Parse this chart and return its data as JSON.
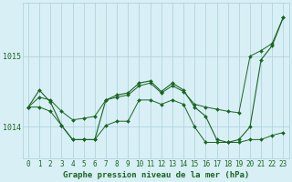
{
  "title": "Graphe pression niveau de la mer (hPa)",
  "x_values": [
    0,
    1,
    2,
    3,
    4,
    5,
    6,
    7,
    8,
    9,
    10,
    11,
    12,
    13,
    14,
    15,
    16,
    17,
    18,
    19,
    20,
    21,
    22,
    23
  ],
  "y_upper": [
    1014.28,
    1014.42,
    1014.38,
    1014.22,
    1014.1,
    1014.12,
    1014.15,
    1014.38,
    1014.42,
    1014.45,
    1014.58,
    1014.62,
    1014.48,
    1014.58,
    1014.5,
    1014.32,
    1014.28,
    1014.25,
    1014.22,
    1014.2,
    1015.0,
    1015.08,
    1015.18,
    1015.55
  ],
  "y_lower": [
    1014.28,
    1014.28,
    1014.22,
    1014.02,
    1013.82,
    1013.82,
    1013.82,
    1014.02,
    1014.08,
    1014.08,
    1014.38,
    1014.38,
    1014.32,
    1014.38,
    1014.32,
    1014.0,
    1013.78,
    1013.78,
    1013.78,
    1013.78,
    1013.82,
    1013.82,
    1013.88,
    1013.92
  ],
  "y_main": [
    1014.28,
    1014.52,
    1014.35,
    1014.02,
    1013.82,
    1013.82,
    1013.82,
    1014.38,
    1014.45,
    1014.48,
    1014.62,
    1014.65,
    1014.5,
    1014.62,
    1014.52,
    1014.28,
    1014.15,
    1013.82,
    1013.78,
    1013.82,
    1014.0,
    1014.95,
    1015.15,
    1015.55
  ],
  "ylim": [
    1013.55,
    1015.75
  ],
  "yticks": [
    1014.0,
    1015.0
  ],
  "ytick_labels": [
    "1014",
    "1015"
  ],
  "bg_color": "#d8eff5",
  "grid_color": "#aacfdc",
  "line_color": "#1a6620",
  "marker_color": "#1a6620",
  "title_color": "#1a6620",
  "title_fontsize": 6.5,
  "tick_fontsize": 5.5
}
